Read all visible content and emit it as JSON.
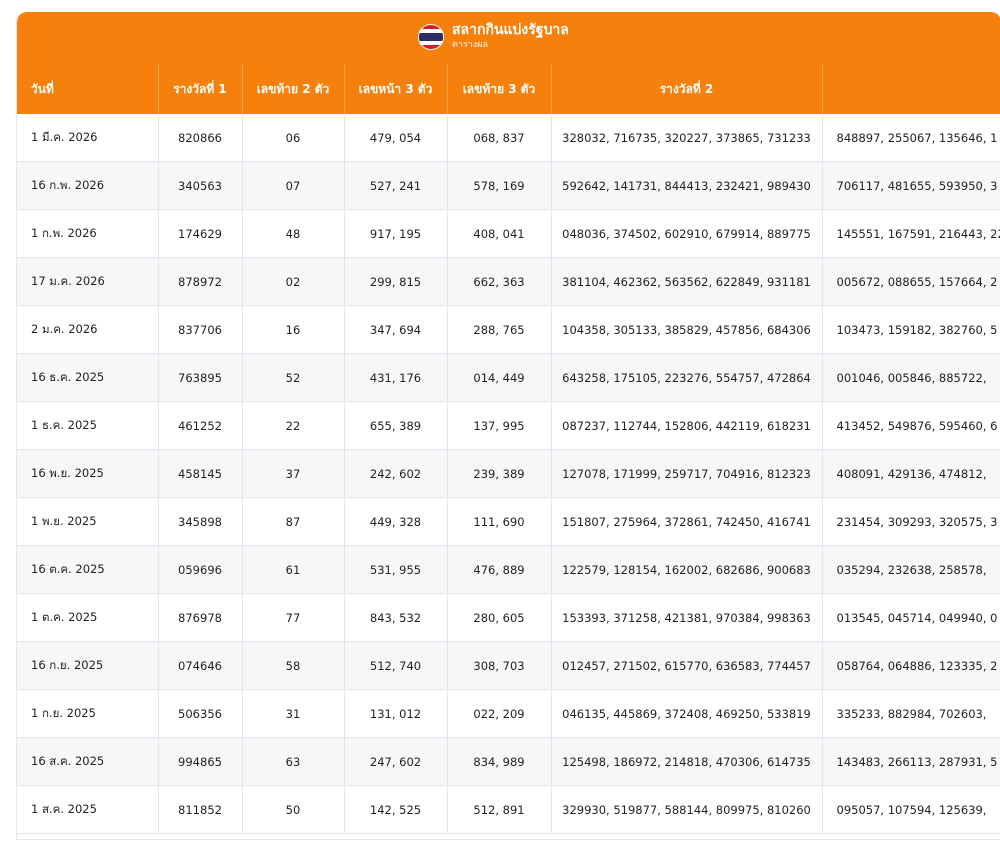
{
  "header": {
    "title": "สลากกินแบ่งรัฐบาล",
    "subtitle": "ตารางผล",
    "flag_icon": "thai-flag-icon"
  },
  "columns": [
    "วันที่",
    "รางวัลที่ 1",
    "เลขท้าย 2 ตัว",
    "เลขหน้า 3 ตัว",
    "เลขท้าย 3 ตัว",
    "รางวัลที่ 2",
    ""
  ],
  "rows": [
    {
      "date": "1 มี.ค. 2026",
      "first": "820866",
      "last2": "06",
      "front3": "479, 054",
      "last3": "068, 837",
      "second": "328032, 716735, 320227, 373865, 731233",
      "third": "848897, 255067, 135646, 1"
    },
    {
      "date": "16 ก.พ. 2026",
      "first": "340563",
      "last2": "07",
      "front3": "527, 241",
      "last3": "578, 169",
      "second": "592642, 141731, 844413, 232421, 989430",
      "third": "706117, 481655, 593950, 3"
    },
    {
      "date": "1 ก.พ. 2026",
      "first": "174629",
      "last2": "48",
      "front3": "917, 195",
      "last3": "408, 041",
      "second": "048036, 374502, 602910, 679914, 889775",
      "third": "145551, 167591, 216443, 22"
    },
    {
      "date": "17 ม.ค. 2026",
      "first": "878972",
      "last2": "02",
      "front3": "299, 815",
      "last3": "662, 363",
      "second": "381104, 462362, 563562, 622849, 931181",
      "third": "005672, 088655, 157664, 2"
    },
    {
      "date": "2 ม.ค. 2026",
      "first": "837706",
      "last2": "16",
      "front3": "347, 694",
      "last3": "288, 765",
      "second": "104358, 305133, 385829, 457856, 684306",
      "third": "103473, 159182, 382760, 5"
    },
    {
      "date": "16 ธ.ค. 2025",
      "first": "763895",
      "last2": "52",
      "front3": "431, 176",
      "last3": "014, 449",
      "second": "643258, 175105, 223276, 554757, 472864",
      "third": "001046, 005846, 885722,"
    },
    {
      "date": "1 ธ.ค. 2025",
      "first": "461252",
      "last2": "22",
      "front3": "655, 389",
      "last3": "137, 995",
      "second": "087237, 112744, 152806, 442119, 618231",
      "third": "413452, 549876, 595460, 6"
    },
    {
      "date": "16 พ.ย. 2025",
      "first": "458145",
      "last2": "37",
      "front3": "242, 602",
      "last3": "239, 389",
      "second": "127078, 171999, 259717, 704916, 812323",
      "third": "408091, 429136, 474812,"
    },
    {
      "date": "1 พ.ย. 2025",
      "first": "345898",
      "last2": "87",
      "front3": "449, 328",
      "last3": "111, 690",
      "second": "151807, 275964, 372861, 742450, 416741",
      "third": "231454, 309293, 320575, 3"
    },
    {
      "date": "16 ต.ค. 2025",
      "first": "059696",
      "last2": "61",
      "front3": "531, 955",
      "last3": "476, 889",
      "second": "122579, 128154, 162002, 682686, 900683",
      "third": "035294, 232638, 258578,"
    },
    {
      "date": "1 ต.ค. 2025",
      "first": "876978",
      "last2": "77",
      "front3": "843, 532",
      "last3": "280, 605",
      "second": "153393, 371258, 421381, 970384, 998363",
      "third": "013545, 045714, 049940, 0"
    },
    {
      "date": "16 ก.ย. 2025",
      "first": "074646",
      "last2": "58",
      "front3": "512, 740",
      "last3": "308, 703",
      "second": "012457, 271502, 615770, 636583, 774457",
      "third": "058764, 064886, 123335, 2"
    },
    {
      "date": "1 ก.ย. 2025",
      "first": "506356",
      "last2": "31",
      "front3": "131, 012",
      "last3": "022, 209",
      "second": "046135, 445869, 372408, 469250, 533819",
      "third": "335233, 882984, 702603,"
    },
    {
      "date": "16 ส.ค. 2025",
      "first": "994865",
      "last2": "63",
      "front3": "247, 602",
      "last3": "834, 989",
      "second": "125498, 186972, 214818, 470306, 614735",
      "third": "143483, 266113, 287931, 5"
    },
    {
      "date": "1 ส.ค. 2025",
      "first": "811852",
      "last2": "50",
      "front3": "142, 525",
      "last3": "512, 891",
      "second": "329930, 519877, 588144, 809975, 810260",
      "third": "095057, 107594, 125639,"
    }
  ]
}
